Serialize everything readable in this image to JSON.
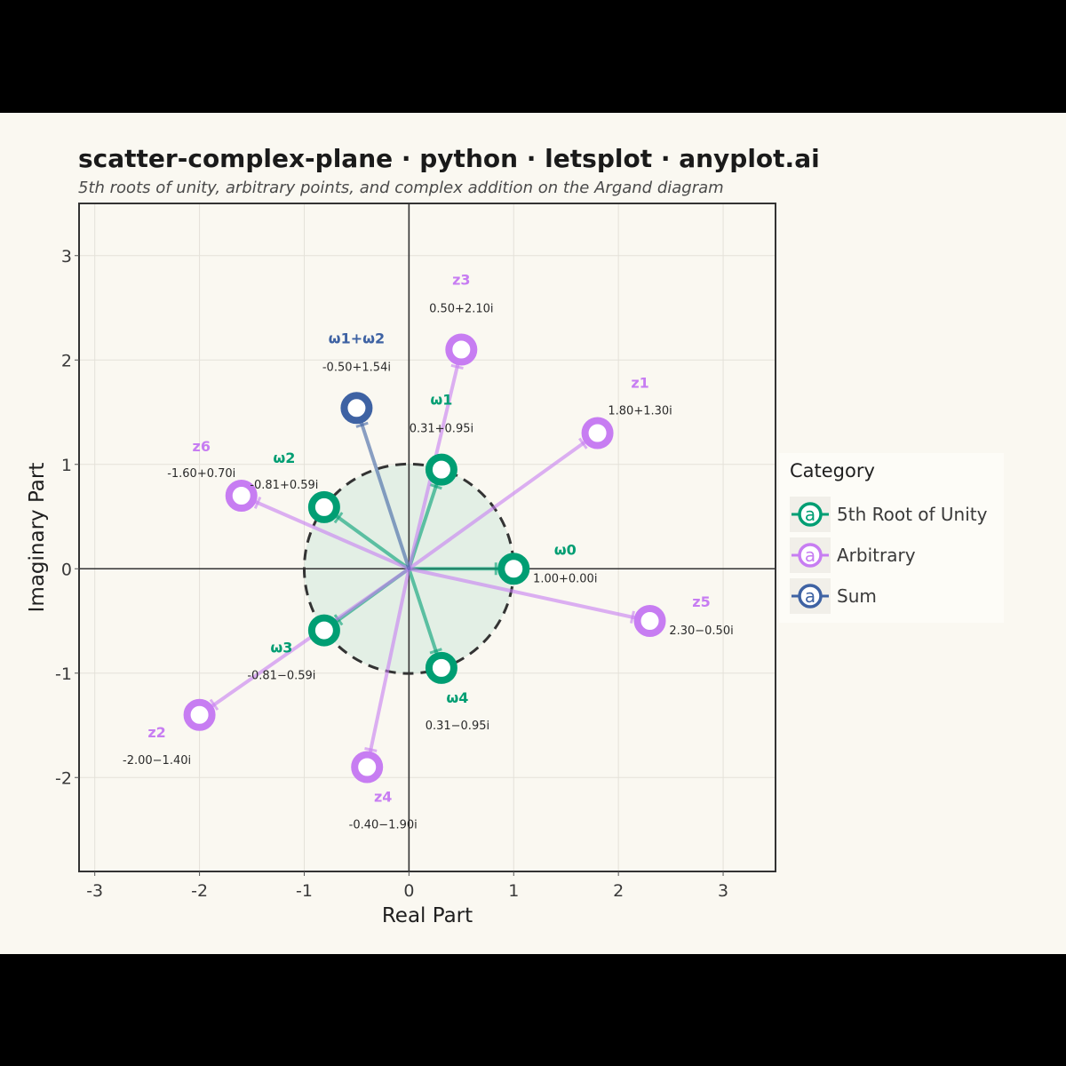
{
  "chart_data": {
    "type": "scatter",
    "title": "scatter-complex-plane · python · letsplot · anyplot.ai",
    "subtitle": "5th roots of unity, arbitrary points, and complex addition on the Argand diagram",
    "xlabel": "Real Part",
    "ylabel": "Imaginary Part",
    "xlim": [
      -3.15,
      3.5
    ],
    "ylim": [
      -2.9,
      3.5
    ],
    "x_ticks": [
      "-3",
      "-2",
      "-1",
      "0",
      "1",
      "2",
      "3"
    ],
    "y_ticks": [
      "-2",
      "-1",
      "0",
      "1",
      "2",
      "3"
    ],
    "grid": true,
    "unit_circle": true,
    "legend": {
      "title": "Category",
      "placement": "right",
      "entries": [
        "5th Root of Unity",
        "Arbitrary",
        "Sum"
      ]
    },
    "colors": {
      "5th Root of Unity": "#009e73",
      "Arbitrary": "#c77df2",
      "Sum": "#3e62a3"
    },
    "points": [
      {
        "name": "ω0",
        "value": "1.00+0.00i",
        "x": 1.0,
        "y": 0.0,
        "category": "5th Root of Unity",
        "label_pos": "right"
      },
      {
        "name": "ω1",
        "value": "0.31+0.95i",
        "x": 0.31,
        "y": 0.95,
        "category": "5th Root of Unity",
        "label_pos": "above"
      },
      {
        "name": "ω2",
        "value": "-0.81+0.59i",
        "x": -0.81,
        "y": 0.59,
        "category": "5th Root of Unity",
        "label_pos": "upper-left"
      },
      {
        "name": "ω3",
        "value": "-0.81−0.59i",
        "x": -0.81,
        "y": -0.59,
        "category": "5th Root of Unity",
        "label_pos": "lower-left"
      },
      {
        "name": "ω4",
        "value": "0.31−0.95i",
        "x": 0.31,
        "y": -0.95,
        "category": "5th Root of Unity",
        "label_pos": "below"
      },
      {
        "name": "z1",
        "value": "1.80+1.30i",
        "x": 1.8,
        "y": 1.3,
        "category": "Arbitrary",
        "label_pos": "upper-right"
      },
      {
        "name": "z2",
        "value": "-2.00−1.40i",
        "x": -2.0,
        "y": -1.4,
        "category": "Arbitrary",
        "label_pos": "lower-left"
      },
      {
        "name": "z3",
        "value": "0.50+2.10i",
        "x": 0.5,
        "y": 2.1,
        "category": "Arbitrary",
        "label_pos": "above"
      },
      {
        "name": "z4",
        "value": "-0.40−1.90i",
        "x": -0.4,
        "y": -1.9,
        "category": "Arbitrary",
        "label_pos": "below"
      },
      {
        "name": "z5",
        "value": "2.30−0.50i",
        "x": 2.3,
        "y": -0.5,
        "category": "Arbitrary",
        "label_pos": "right"
      },
      {
        "name": "z6",
        "value": "-1.60+0.70i",
        "x": -1.6,
        "y": 0.7,
        "category": "Arbitrary",
        "label_pos": "upper-left"
      },
      {
        "name": "ω1+ω2",
        "value": "-0.50+1.54i",
        "x": -0.5,
        "y": 1.54,
        "category": "Sum",
        "label_pos": "above"
      }
    ]
  }
}
